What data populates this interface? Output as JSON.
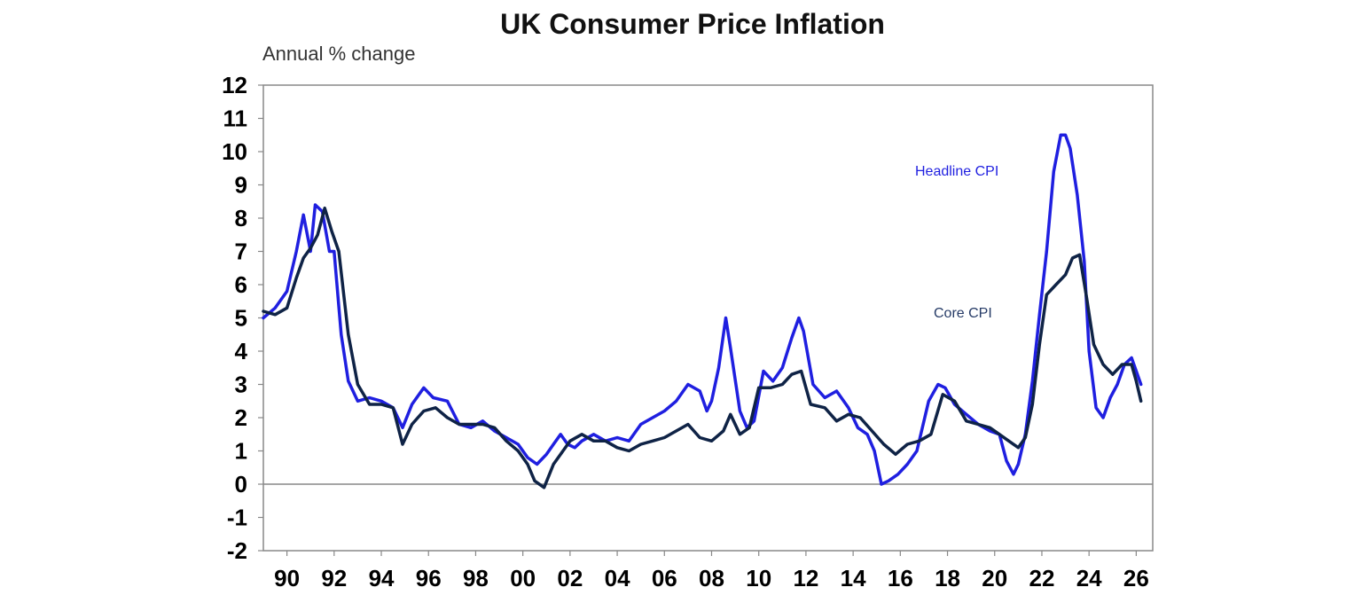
{
  "chart_data": {
    "type": "line",
    "title": "UK Consumer Price Inflation",
    "ylabel": "Annual % change",
    "ylim": [
      -2,
      12
    ],
    "yticks": [
      "12",
      "11",
      "10",
      "9",
      "8",
      "7",
      "6",
      "5",
      "4",
      "3",
      "2",
      "1",
      "0",
      "-1",
      "-2"
    ],
    "xlim": [
      1989.0,
      2026.7
    ],
    "xtick_labels": [
      "90",
      "92",
      "94",
      "96",
      "98",
      "00",
      "02",
      "04",
      "06",
      "08",
      "10",
      "12",
      "14",
      "16",
      "18",
      "20",
      "22",
      "24",
      "26"
    ],
    "xtick_years": [
      1990,
      1992,
      1994,
      1996,
      1998,
      2000,
      2002,
      2004,
      2006,
      2008,
      2010,
      2012,
      2014,
      2016,
      2018,
      2020,
      2022,
      2024,
      2026
    ],
    "zero_line": true,
    "series": [
      {
        "name": "Headline CPI",
        "color": "#1f1fe0",
        "x": [
          1989.0,
          1989.5,
          1990.0,
          1990.4,
          1990.7,
          1991.0,
          1991.2,
          1991.5,
          1991.8,
          1992.0,
          1992.3,
          1992.6,
          1993.0,
          1993.5,
          1994.0,
          1994.5,
          1994.9,
          1995.3,
          1995.8,
          1996.2,
          1996.8,
          1997.3,
          1997.8,
          1998.3,
          1998.8,
          1999.3,
          1999.8,
          2000.2,
          2000.6,
          2001.0,
          2001.3,
          2001.6,
          2001.9,
          2002.2,
          2002.5,
          2003.0,
          2003.5,
          2004.0,
          2004.5,
          2005.0,
          2005.5,
          2006.0,
          2006.5,
          2007.0,
          2007.5,
          2007.8,
          2008.0,
          2008.3,
          2008.6,
          2008.8,
          2009.2,
          2009.5,
          2009.8,
          2010.2,
          2010.6,
          2011.0,
          2011.4,
          2011.7,
          2011.9,
          2012.3,
          2012.8,
          2013.3,
          2013.8,
          2014.2,
          2014.6,
          2014.9,
          2015.2,
          2015.5,
          2015.9,
          2016.3,
          2016.7,
          2017.2,
          2017.6,
          2017.9,
          2018.3,
          2018.8,
          2019.3,
          2019.8,
          2020.2,
          2020.5,
          2020.8,
          2021.0,
          2021.3,
          2021.6,
          2021.9,
          2022.2,
          2022.5,
          2022.8,
          2023.0,
          2023.2,
          2023.5,
          2023.8,
          2024.0,
          2024.3,
          2024.6,
          2024.9,
          2025.2,
          2025.5,
          2025.8,
          2026.0,
          2026.2
        ],
        "values": [
          5.0,
          5.3,
          5.8,
          7.0,
          8.1,
          7.0,
          8.4,
          8.2,
          7.0,
          7.0,
          4.5,
          3.1,
          2.5,
          2.6,
          2.5,
          2.3,
          1.7,
          2.4,
          2.9,
          2.6,
          2.5,
          1.8,
          1.7,
          1.9,
          1.6,
          1.4,
          1.2,
          0.8,
          0.6,
          0.9,
          1.2,
          1.5,
          1.2,
          1.1,
          1.3,
          1.5,
          1.3,
          1.4,
          1.3,
          1.8,
          2.0,
          2.2,
          2.5,
          3.0,
          2.8,
          2.2,
          2.5,
          3.5,
          5.0,
          4.1,
          2.2,
          1.7,
          1.9,
          3.4,
          3.1,
          3.5,
          4.4,
          5.0,
          4.6,
          3.0,
          2.6,
          2.8,
          2.3,
          1.7,
          1.5,
          1.0,
          0.0,
          0.1,
          0.3,
          0.6,
          1.0,
          2.5,
          3.0,
          2.9,
          2.4,
          2.1,
          1.8,
          1.6,
          1.5,
          0.7,
          0.3,
          0.6,
          1.5,
          3.1,
          5.1,
          7.0,
          9.4,
          10.5,
          10.5,
          10.1,
          8.7,
          6.7,
          4.0,
          2.3,
          2.0,
          2.6,
          3.0,
          3.6,
          3.8,
          3.4,
          3.0
        ],
        "label": "Headline CPI"
      },
      {
        "name": "Core CPI",
        "color": "#0f2346",
        "x": [
          1989.0,
          1989.5,
          1990.0,
          1990.4,
          1990.7,
          1991.0,
          1991.3,
          1991.6,
          1991.9,
          1992.2,
          1992.6,
          1993.0,
          1993.5,
          1994.0,
          1994.5,
          1994.9,
          1995.3,
          1995.8,
          1996.3,
          1996.8,
          1997.3,
          1997.8,
          1998.3,
          1998.8,
          1999.3,
          1999.8,
          2000.2,
          2000.5,
          2000.9,
          2001.3,
          2001.7,
          2002.0,
          2002.5,
          2003.0,
          2003.5,
          2004.0,
          2004.5,
          2005.0,
          2005.5,
          2006.0,
          2006.5,
          2007.0,
          2007.5,
          2008.0,
          2008.5,
          2008.8,
          2009.2,
          2009.6,
          2010.0,
          2010.5,
          2011.0,
          2011.4,
          2011.8,
          2012.2,
          2012.8,
          2013.3,
          2013.8,
          2014.3,
          2014.8,
          2015.3,
          2015.8,
          2016.3,
          2016.8,
          2017.3,
          2017.8,
          2018.3,
          2018.8,
          2019.3,
          2019.8,
          2020.2,
          2020.6,
          2021.0,
          2021.3,
          2021.6,
          2021.9,
          2022.2,
          2022.6,
          2023.0,
          2023.3,
          2023.6,
          2023.9,
          2024.2,
          2024.6,
          2025.0,
          2025.4,
          2025.8,
          2026.0,
          2026.2
        ],
        "values": [
          5.2,
          5.1,
          5.3,
          6.2,
          6.8,
          7.1,
          7.5,
          8.3,
          7.6,
          7.0,
          4.5,
          3.0,
          2.4,
          2.4,
          2.3,
          1.2,
          1.8,
          2.2,
          2.3,
          2.0,
          1.8,
          1.8,
          1.8,
          1.7,
          1.3,
          1.0,
          0.6,
          0.1,
          -0.1,
          0.6,
          1.0,
          1.3,
          1.5,
          1.3,
          1.3,
          1.1,
          1.0,
          1.2,
          1.3,
          1.4,
          1.6,
          1.8,
          1.4,
          1.3,
          1.6,
          2.1,
          1.5,
          1.7,
          2.9,
          2.9,
          3.0,
          3.3,
          3.4,
          2.4,
          2.3,
          1.9,
          2.1,
          2.0,
          1.6,
          1.2,
          0.9,
          1.2,
          1.3,
          1.5,
          2.7,
          2.5,
          1.9,
          1.8,
          1.7,
          1.5,
          1.3,
          1.1,
          1.4,
          2.4,
          4.2,
          5.7,
          6.0,
          6.3,
          6.8,
          6.9,
          5.6,
          4.2,
          3.6,
          3.3,
          3.6,
          3.6,
          3.1,
          2.5
        ],
        "label": "Core CPI"
      }
    ],
    "annotations": [
      {
        "text": "Headline CPI",
        "color": "#1f1fe0"
      },
      {
        "text": "Core CPI",
        "color": "#253a66"
      }
    ]
  }
}
